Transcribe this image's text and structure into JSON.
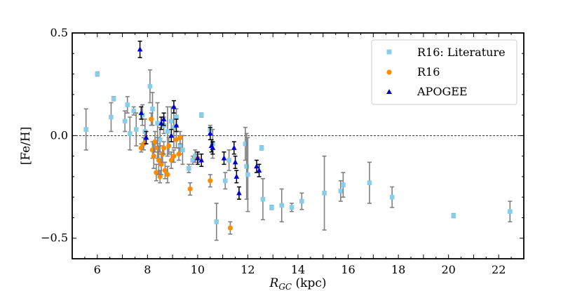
{
  "chart_data": {
    "type": "scatter",
    "title": "",
    "xlabel": "R",
    "xlabel_sub": "GC",
    "xlabel_unit": " (kpc)",
    "ylabel": "[Fe/H]",
    "xlim": [
      5,
      23
    ],
    "ylim": [
      -0.6,
      0.5
    ],
    "xticks": [
      6,
      8,
      10,
      12,
      14,
      16,
      18,
      20,
      22
    ],
    "yticks": [
      0.5,
      0.0,
      -0.5
    ],
    "ytick_labels": [
      "0.5",
      "0.0",
      "−0.5"
    ],
    "reference_line_y": 0.0,
    "legend_position": "top-right",
    "series": [
      {
        "name": "R16: Literature",
        "marker": "square",
        "color": "#87ceeb",
        "error_color": "#808080",
        "points": [
          {
            "x": 5.55,
            "y": 0.03,
            "err": 0.1
          },
          {
            "x": 6.0,
            "y": 0.3,
            "err": 0.01
          },
          {
            "x": 6.55,
            "y": 0.09,
            "err": 0.07
          },
          {
            "x": 6.65,
            "y": 0.18,
            "err": 0.01
          },
          {
            "x": 7.1,
            "y": 0.07,
            "err": 0.05
          },
          {
            "x": 7.2,
            "y": 0.15,
            "err": 0.04
          },
          {
            "x": 7.3,
            "y": 0.01,
            "err": 0.08
          },
          {
            "x": 7.45,
            "y": 0.12,
            "err": 0.02
          },
          {
            "x": 7.55,
            "y": 0.03,
            "err": 0.08
          },
          {
            "x": 7.8,
            "y": 0.1,
            "err": 0.05
          },
          {
            "x": 7.9,
            "y": 0.02,
            "err": 0.06
          },
          {
            "x": 8.1,
            "y": 0.24,
            "err": 0.08
          },
          {
            "x": 8.2,
            "y": 0.13,
            "err": 0.08
          },
          {
            "x": 8.4,
            "y": 0.06,
            "err": 0.1
          },
          {
            "x": 8.5,
            "y": -0.02,
            "err": 0.06
          },
          {
            "x": 8.65,
            "y": 0.05,
            "err": 0.04
          },
          {
            "x": 8.8,
            "y": 0.02,
            "err": 0.12
          },
          {
            "x": 8.95,
            "y": 0.07,
            "err": 0.07
          },
          {
            "x": 9.05,
            "y": 0.04,
            "err": 0.1
          },
          {
            "x": 9.15,
            "y": 0.09,
            "err": 0.04
          },
          {
            "x": 9.3,
            "y": -0.05,
            "err": 0.04
          },
          {
            "x": 9.4,
            "y": -0.07,
            "err": 0.07
          },
          {
            "x": 9.65,
            "y": -0.16,
            "err": 0.02
          },
          {
            "x": 9.8,
            "y": -0.12,
            "err": 0.02
          },
          {
            "x": 9.9,
            "y": -0.1,
            "err": 0.03
          },
          {
            "x": 10.15,
            "y": 0.1,
            "err": 0.01
          },
          {
            "x": 10.5,
            "y": 0.03,
            "err": 0.02
          },
          {
            "x": 10.6,
            "y": -0.04,
            "err": 0.07
          },
          {
            "x": 10.75,
            "y": -0.42,
            "err": 0.09
          },
          {
            "x": 11.1,
            "y": -0.22,
            "err": 0.04
          },
          {
            "x": 11.25,
            "y": -0.12,
            "err": 0.05
          },
          {
            "x": 11.9,
            "y": -0.04,
            "err": 0.08
          },
          {
            "x": 11.95,
            "y": -0.15,
            "err": 0.16
          },
          {
            "x": 12.0,
            "y": -0.19,
            "err": 0.18
          },
          {
            "x": 12.55,
            "y": -0.06,
            "err": 0.01
          },
          {
            "x": 12.6,
            "y": -0.31,
            "err": 0.1
          },
          {
            "x": 12.95,
            "y": -0.35,
            "err": 0.01
          },
          {
            "x": 13.35,
            "y": -0.34,
            "err": 0.08
          },
          {
            "x": 13.75,
            "y": -0.35,
            "err": 0.02
          },
          {
            "x": 14.15,
            "y": -0.32,
            "err": 0.04
          },
          {
            "x": 15.05,
            "y": -0.28,
            "err": 0.18
          },
          {
            "x": 15.7,
            "y": -0.27,
            "err": 0.05
          },
          {
            "x": 15.8,
            "y": -0.24,
            "err": 0.06
          },
          {
            "x": 16.85,
            "y": -0.23,
            "err": 0.1
          },
          {
            "x": 17.75,
            "y": -0.3,
            "err": 0.05
          },
          {
            "x": 20.2,
            "y": -0.39,
            "err": 0.01
          },
          {
            "x": 22.45,
            "y": -0.37,
            "err": 0.05
          }
        ]
      },
      {
        "name": "R16",
        "marker": "circle",
        "color": "#ff8c00",
        "error_color": "#808080",
        "points": [
          {
            "x": 7.75,
            "y": -0.06,
            "err": 0.02
          },
          {
            "x": 7.85,
            "y": -0.04,
            "err": 0.03
          },
          {
            "x": 8.15,
            "y": 0.08,
            "err": 0.03
          },
          {
            "x": 8.2,
            "y": -0.07,
            "err": 0.04
          },
          {
            "x": 8.25,
            "y": -0.1,
            "err": 0.06
          },
          {
            "x": 8.3,
            "y": -0.03,
            "err": 0.05
          },
          {
            "x": 8.35,
            "y": -0.18,
            "err": 0.04
          },
          {
            "x": 8.4,
            "y": -0.06,
            "err": 0.05
          },
          {
            "x": 8.45,
            "y": -0.12,
            "err": 0.07
          },
          {
            "x": 8.5,
            "y": -0.2,
            "err": 0.03
          },
          {
            "x": 8.55,
            "y": -0.14,
            "err": 0.05
          },
          {
            "x": 8.6,
            "y": -0.09,
            "err": 0.04
          },
          {
            "x": 8.65,
            "y": -0.06,
            "err": 0.03
          },
          {
            "x": 8.7,
            "y": -0.17,
            "err": 0.04
          },
          {
            "x": 8.8,
            "y": -0.19,
            "err": 0.04
          },
          {
            "x": 8.85,
            "y": -0.05,
            "err": 0.04
          },
          {
            "x": 8.95,
            "y": -0.12,
            "err": 0.04
          },
          {
            "x": 9.05,
            "y": -0.1,
            "err": 0.03
          },
          {
            "x": 9.15,
            "y": -0.02,
            "err": 0.04
          },
          {
            "x": 9.25,
            "y": -0.09,
            "err": 0.03
          },
          {
            "x": 9.3,
            "y": -0.01,
            "err": 0.03
          },
          {
            "x": 9.7,
            "y": -0.26,
            "err": 0.03
          },
          {
            "x": 10.0,
            "y": -0.11,
            "err": 0.02
          },
          {
            "x": 10.5,
            "y": -0.22,
            "err": 0.03
          },
          {
            "x": 11.3,
            "y": -0.45,
            "err": 0.03
          }
        ]
      },
      {
        "name": "APOGEE",
        "marker": "triangle",
        "color": "#0000cd",
        "error_color": "#000000",
        "points": [
          {
            "x": 7.7,
            "y": 0.42,
            "err": 0.04
          },
          {
            "x": 7.75,
            "y": 0.11,
            "err": 0.03
          },
          {
            "x": 7.95,
            "y": -0.01,
            "err": 0.03
          },
          {
            "x": 8.55,
            "y": 0.06,
            "err": 0.03
          },
          {
            "x": 8.65,
            "y": 0.08,
            "err": 0.03
          },
          {
            "x": 8.95,
            "y": 0.0,
            "err": 0.03
          },
          {
            "x": 9.05,
            "y": 0.14,
            "err": 0.03
          },
          {
            "x": 9.15,
            "y": 0.05,
            "err": 0.03
          },
          {
            "x": 10.0,
            "y": -0.11,
            "err": 0.03
          },
          {
            "x": 10.15,
            "y": -0.12,
            "err": 0.03
          },
          {
            "x": 10.5,
            "y": 0.01,
            "err": 0.03
          },
          {
            "x": 10.55,
            "y": -0.05,
            "err": 0.03
          },
          {
            "x": 10.6,
            "y": -0.06,
            "err": 0.03
          },
          {
            "x": 11.05,
            "y": -0.11,
            "err": 0.03
          },
          {
            "x": 11.45,
            "y": -0.06,
            "err": 0.03
          },
          {
            "x": 11.5,
            "y": -0.13,
            "err": 0.03
          },
          {
            "x": 11.55,
            "y": -0.2,
            "err": 0.03
          },
          {
            "x": 11.65,
            "y": -0.28,
            "err": 0.03
          },
          {
            "x": 12.35,
            "y": -0.15,
            "err": 0.03
          },
          {
            "x": 12.45,
            "y": -0.17,
            "err": 0.03
          }
        ]
      }
    ]
  }
}
